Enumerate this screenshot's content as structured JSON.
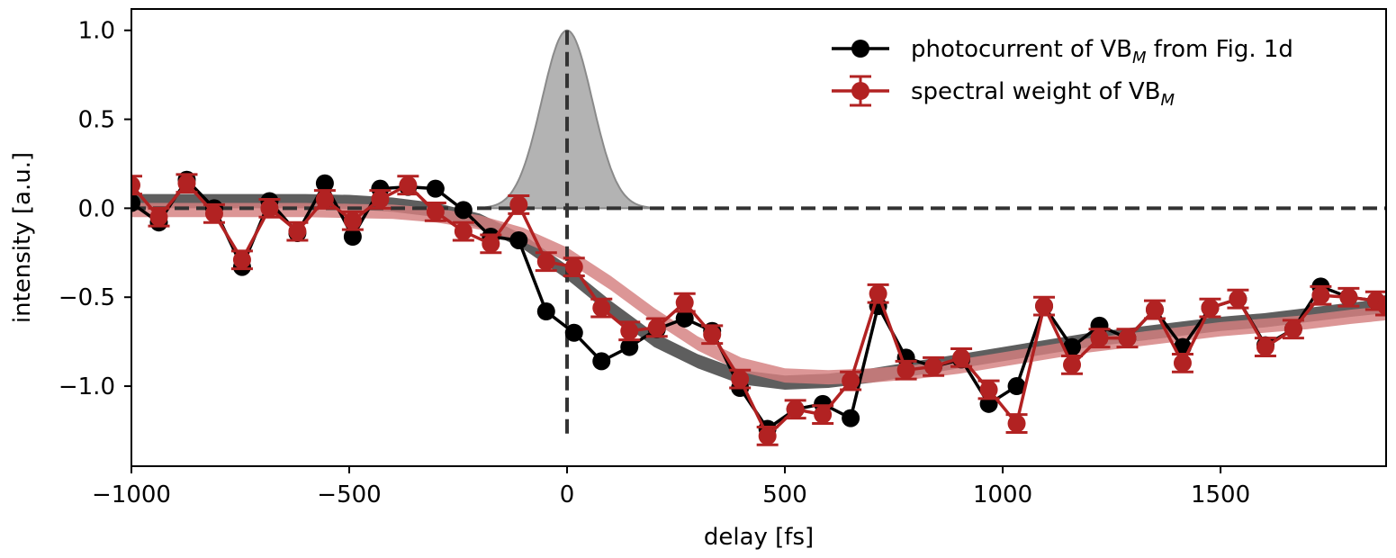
{
  "chart_data": {
    "type": "line",
    "xlabel": "delay [fs]",
    "ylabel": "intensity [a.u.]",
    "xlim": [
      -1000,
      1880
    ],
    "ylim": [
      -1.45,
      1.12
    ],
    "xticks": [
      -1000,
      -500,
      0,
      500,
      1000,
      1500
    ],
    "xtick_labels": [
      "−1000",
      "−500",
      "0",
      "500",
      "1000",
      "1500"
    ],
    "yticks": [
      1.0,
      0.5,
      0.0,
      -0.5,
      -1.0
    ],
    "ytick_labels": [
      "1.0",
      "0.5",
      "0.0",
      "−0.5",
      "−1.0"
    ],
    "grid": false,
    "legend_position": "top-right",
    "colors": {
      "photocurrent": "#000000",
      "spectral": "#b22222",
      "pulse_fill": "#b3b3b3",
      "band_dark": "#5e5e5e",
      "band_red": "#d47f7f",
      "band_overlap": "#8b3f3f",
      "reference": "#333333"
    },
    "series": [
      {
        "name": "photocurrent of VB_M from Fig. 1d",
        "legend_main": "photocurrent of VB",
        "legend_sub": "M",
        "legend_rest": " from Fig. 1d",
        "x": [
          -1000,
          -937,
          -873,
          -810,
          -746,
          -683,
          -619,
          -556,
          -492,
          -429,
          -365,
          -302,
          -238,
          -175,
          -111,
          -48,
          16,
          79,
          143,
          206,
          270,
          333,
          397,
          460,
          524,
          587,
          651,
          714,
          778,
          841,
          905,
          968,
          1032,
          1095,
          1159,
          1222,
          1286,
          1349,
          1413,
          1476,
          1540,
          1603,
          1667,
          1730,
          1794,
          1857,
          1880
        ],
        "values": [
          0.03,
          -0.08,
          0.16,
          0.0,
          -0.33,
          0.04,
          -0.14,
          0.14,
          -0.16,
          0.11,
          0.12,
          0.11,
          -0.01,
          -0.16,
          -0.18,
          -0.58,
          -0.7,
          -0.86,
          -0.78,
          -0.68,
          -0.62,
          -0.69,
          -1.01,
          -1.24,
          -1.13,
          -1.1,
          -1.18,
          -0.55,
          -0.84,
          -0.89,
          -0.85,
          -1.1,
          -1.0,
          -0.55,
          -0.78,
          -0.66,
          -0.73,
          -0.57,
          -0.78,
          -0.56,
          -0.51,
          -0.77,
          -0.68,
          -0.44,
          -0.5,
          -0.52,
          -0.54
        ]
      },
      {
        "name": "spectral weight of VB_M",
        "legend_main": "spectral weight of VB",
        "legend_sub": "M",
        "legend_rest": "",
        "x": [
          -1000,
          -937,
          -873,
          -810,
          -746,
          -683,
          -619,
          -556,
          -492,
          -429,
          -365,
          -302,
          -238,
          -175,
          -111,
          -48,
          16,
          79,
          143,
          206,
          270,
          333,
          397,
          460,
          524,
          587,
          651,
          714,
          778,
          841,
          905,
          968,
          1032,
          1095,
          1159,
          1222,
          1286,
          1349,
          1413,
          1476,
          1540,
          1603,
          1667,
          1730,
          1794,
          1857,
          1880
        ],
        "values": [
          0.13,
          -0.05,
          0.14,
          -0.03,
          -0.29,
          0.0,
          -0.13,
          0.05,
          -0.07,
          0.05,
          0.13,
          -0.02,
          -0.13,
          -0.2,
          0.02,
          -0.3,
          -0.33,
          -0.56,
          -0.69,
          -0.67,
          -0.53,
          -0.71,
          -0.96,
          -1.28,
          -1.13,
          -1.16,
          -0.97,
          -0.48,
          -0.91,
          -0.89,
          -0.84,
          -1.02,
          -1.21,
          -0.55,
          -0.88,
          -0.73,
          -0.73,
          -0.57,
          -0.87,
          -0.56,
          -0.51,
          -0.78,
          -0.68,
          -0.49,
          -0.5,
          -0.52,
          -0.55
        ],
        "errors": [
          0.05,
          0.05,
          0.05,
          0.05,
          0.05,
          0.05,
          0.05,
          0.05,
          0.05,
          0.05,
          0.05,
          0.05,
          0.05,
          0.05,
          0.05,
          0.05,
          0.05,
          0.05,
          0.05,
          0.05,
          0.05,
          0.05,
          0.05,
          0.05,
          0.05,
          0.05,
          0.05,
          0.05,
          0.05,
          0.05,
          0.05,
          0.05,
          0.05,
          0.05,
          0.05,
          0.05,
          0.05,
          0.05,
          0.05,
          0.05,
          0.05,
          0.05,
          0.05,
          0.05,
          0.05,
          0.05,
          0.05
        ]
      }
    ],
    "fit_bands": [
      {
        "x": [
          -1000,
          -800,
          -600,
          -500,
          -400,
          -300,
          -200,
          -100,
          0,
          100,
          200,
          300,
          400,
          500,
          600,
          700,
          800,
          900,
          1000,
          1100,
          1200,
          1300,
          1400,
          1500,
          1600,
          1700,
          1800,
          1880
        ],
        "center": [
          0.04,
          0.04,
          0.04,
          0.035,
          0.02,
          -0.01,
          -0.07,
          -0.19,
          -0.36,
          -0.56,
          -0.74,
          -0.86,
          -0.95,
          -0.98,
          -0.97,
          -0.94,
          -0.9,
          -0.86,
          -0.82,
          -0.78,
          -0.74,
          -0.71,
          -0.68,
          -0.65,
          -0.63,
          -0.6,
          -0.57,
          -0.55
        ],
        "halfwidth": 0.04
      },
      {
        "x": [
          -1000,
          -800,
          -600,
          -500,
          -400,
          -300,
          -200,
          -100,
          0,
          100,
          200,
          300,
          400,
          500,
          600,
          700,
          800,
          900,
          1000,
          1100,
          1200,
          1300,
          1400,
          1500,
          1600,
          1700,
          1800,
          1880
        ],
        "center": [
          -0.01,
          -0.01,
          -0.01,
          -0.015,
          -0.02,
          -0.04,
          -0.08,
          -0.15,
          -0.26,
          -0.42,
          -0.6,
          -0.76,
          -0.88,
          -0.94,
          -0.95,
          -0.94,
          -0.92,
          -0.89,
          -0.85,
          -0.81,
          -0.77,
          -0.74,
          -0.71,
          -0.68,
          -0.66,
          -0.64,
          -0.61,
          -0.59
        ],
        "halfwidth": 0.04
      }
    ],
    "pulse": {
      "center": 0,
      "amplitude": 1.0,
      "sigma": 58,
      "xmin": -200,
      "xmax": 200
    },
    "reference_lines": {
      "y0": 0.0,
      "x0": 0,
      "x0_ymin": -1.28,
      "x0_ymax": 1.0
    }
  }
}
